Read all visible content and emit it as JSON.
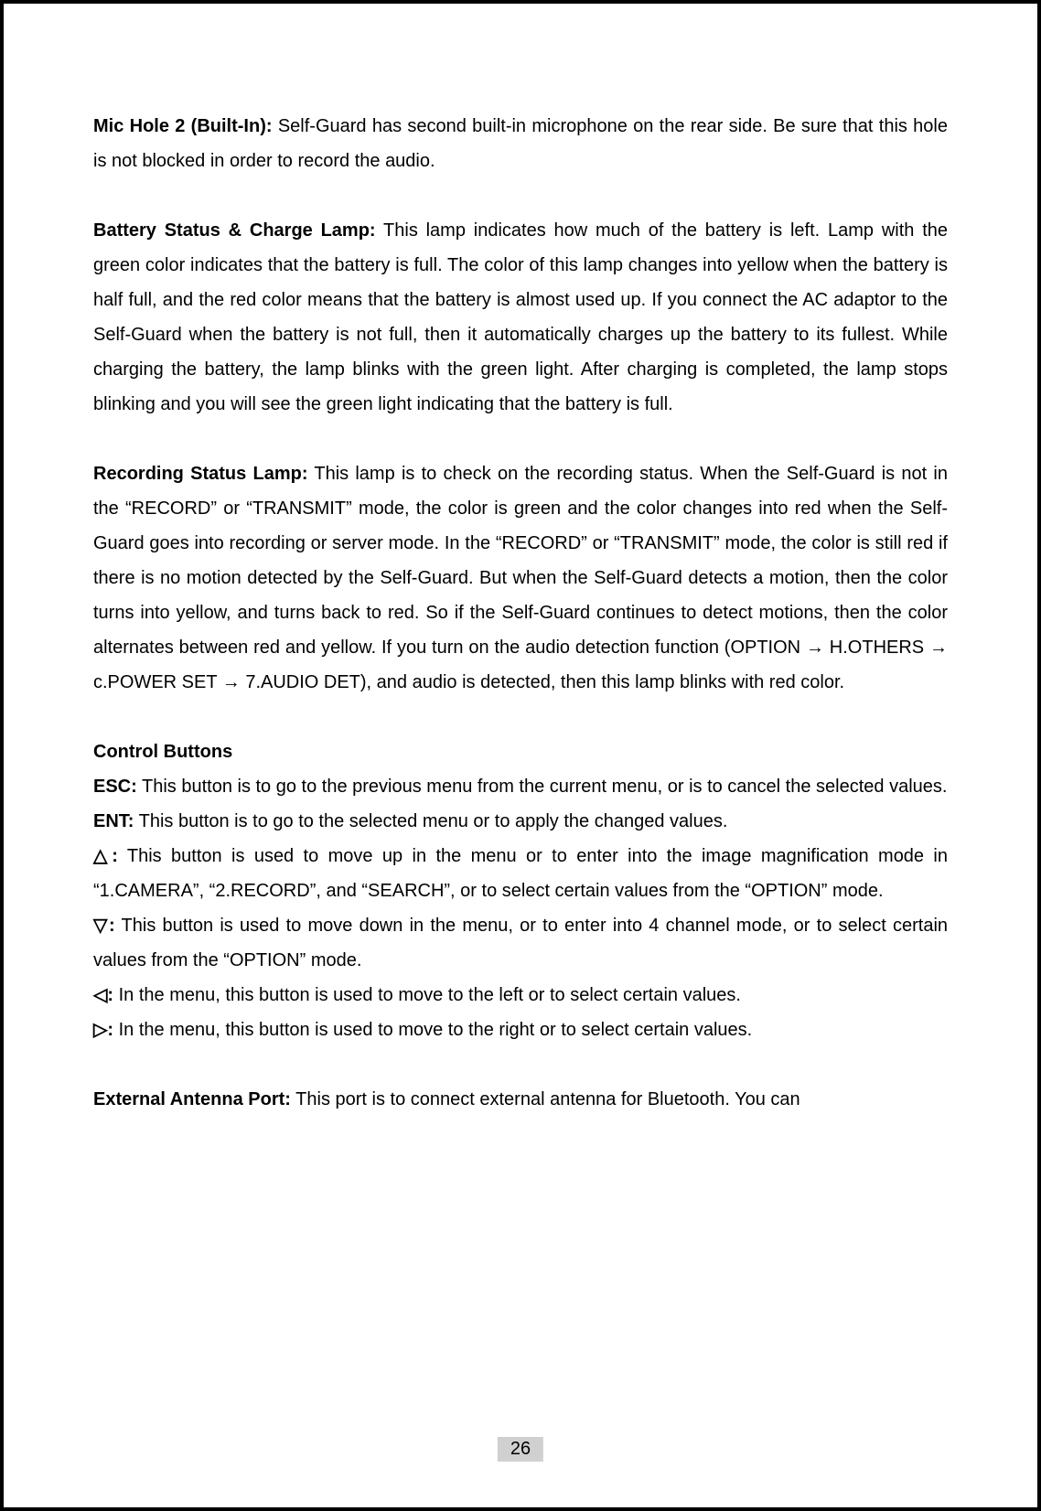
{
  "sections": {
    "micHole": {
      "label": "Mic Hole 2 (Built-In):",
      "text": " Self-Guard has second built-in microphone on the rear side. Be sure that this hole is not blocked in order to record the audio."
    },
    "batteryStatus": {
      "label": "Battery Status & Charge Lamp:",
      "text": " This lamp indicates how much of the battery is left. Lamp with the green color indicates that the battery is full. The color of this lamp changes into yellow when the battery is half full, and the red color means that the battery is almost used up. If you connect the AC adaptor to the Self-Guard when the battery is not full, then it automatically charges up the battery to its fullest. While charging the battery, the lamp blinks with the green light. After charging is completed, the lamp stops blinking and you will see the green light indicating that the battery is full."
    },
    "recordingStatus": {
      "label": "Recording Status Lamp:",
      "text": " This lamp is to check on the recording status. When the Self-Guard is not in the “RECORD” or “TRANSMIT” mode, the color is green and the color changes into red when the Self-Guard goes into recording or server mode. In the “RECORD” or “TRANSMIT” mode, the color is still red if there is no motion detected by the Self-Guard. But when the Self-Guard detects a motion, then the color turns into yellow, and turns back to red. So if the Self-Guard continues to detect motions, then the color alternates between red and yellow. If you turn on the audio detection function (OPTION → H.OTHERS → c.POWER SET → 7.AUDIO DET), and audio is detected, then this lamp blinks with red color."
    },
    "controlButtons": {
      "heading": "Control Buttons",
      "esc": {
        "label": "ESC:",
        "text": " This button is to go to the previous menu from the current menu, or is to cancel the selected values."
      },
      "ent": {
        "label": "ENT:",
        "text": " This button is to go to the selected menu or to apply the changed values."
      },
      "up": {
        "label": "△:",
        "text": " This button is used to move up in the menu or to enter into the image magnification mode in “1.CAMERA”, “2.RECORD”, and “SEARCH”, or to select certain values from the “OPTION” mode."
      },
      "down": {
        "label": "▽:",
        "text": " This button is used to move down in the menu, or to enter into 4 channel mode, or to select certain values from the “OPTION” mode."
      },
      "left": {
        "label": "◁:",
        "text": " In the menu, this button is used to move to the left or to select certain values."
      },
      "right": {
        "label": "▷:",
        "text": " In the menu, this button is used to move to the right or to select certain values."
      }
    },
    "externalAntenna": {
      "label": "External Antenna Port:",
      "text": " This port is to connect external antenna for Bluetooth. You can"
    }
  },
  "pageNumber": "26"
}
